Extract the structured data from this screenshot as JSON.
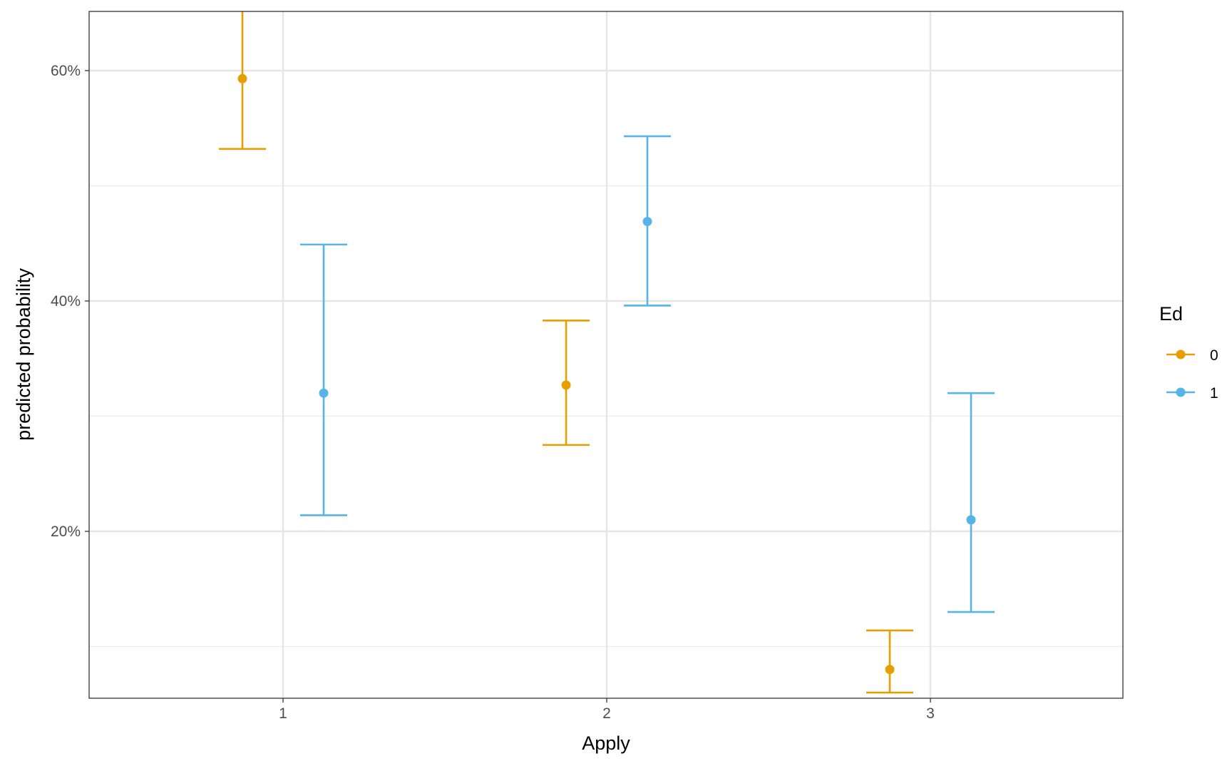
{
  "chart_data": {
    "type": "errorbar",
    "xlabel": "Apply",
    "ylabel": "predicted probability",
    "categories": [
      "1",
      "2",
      "3"
    ],
    "ylim": [
      0.065,
      0.65
    ],
    "y_ticks": [
      {
        "value": 0.2,
        "label": "20%"
      },
      {
        "value": 0.4,
        "label": "40%"
      },
      {
        "value": 0.6,
        "label": "60%"
      }
    ],
    "y_minor_ticks": [
      0.1,
      0.3,
      0.5
    ],
    "grid": true,
    "legend": {
      "title": "Ed",
      "position": "right"
    },
    "series": [
      {
        "name": "0",
        "color": "#E69F00",
        "points": [
          {
            "category": "1",
            "estimate": 0.593,
            "lower": 0.532,
            "upper": 0.66
          },
          {
            "category": "2",
            "estimate": 0.327,
            "lower": 0.275,
            "upper": 0.383
          },
          {
            "category": "3",
            "estimate": 0.08,
            "lower": 0.06,
            "upper": 0.114
          }
        ]
      },
      {
        "name": "1",
        "color": "#56B4E9",
        "points": [
          {
            "category": "1",
            "estimate": 0.32,
            "lower": 0.214,
            "upper": 0.449
          },
          {
            "category": "2",
            "estimate": 0.469,
            "lower": 0.396,
            "upper": 0.543
          },
          {
            "category": "3",
            "estimate": 0.21,
            "lower": 0.13,
            "upper": 0.32
          }
        ]
      }
    ]
  }
}
